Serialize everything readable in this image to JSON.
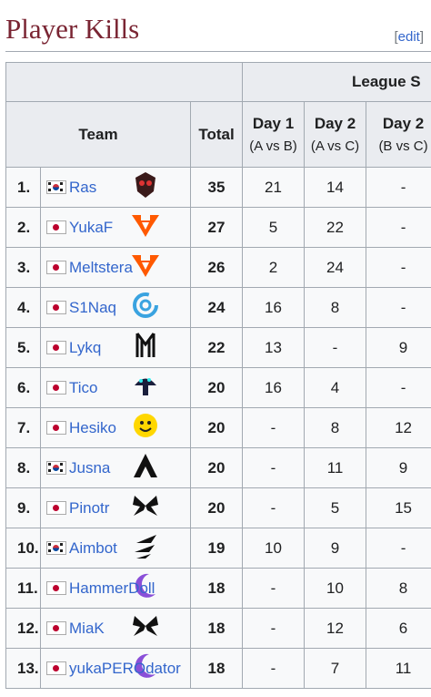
{
  "page": {
    "heading": "Player Kills",
    "edit_bracket_open": "[",
    "edit_label": "edit",
    "edit_bracket_close": "]"
  },
  "table": {
    "group_header": "League S",
    "columns": {
      "team": "Team",
      "total": "Total",
      "day1_a": {
        "day": "Day 1",
        "match": "(A vs B)"
      },
      "day2_a": {
        "day": "Day 2",
        "match": "(A vs C)"
      },
      "day2_b": {
        "day": "Day 2",
        "match": "(B vs C)"
      }
    },
    "rows": [
      {
        "rank": "1.",
        "flag": "kr",
        "player": "Ras",
        "logo": "ras-logo-icon",
        "total": "35",
        "d1": "21",
        "d2a": "14",
        "d2b": "-"
      },
      {
        "rank": "2.",
        "flag": "jp",
        "player": "YukaF",
        "logo": "fnatic-logo-icon",
        "total": "27",
        "d1": "5",
        "d2a": "22",
        "d2b": "-"
      },
      {
        "rank": "3.",
        "flag": "jp",
        "player": "Meltstera",
        "logo": "fnatic-logo-icon",
        "total": "26",
        "d1": "2",
        "d2a": "24",
        "d2b": "-"
      },
      {
        "rank": "4.",
        "flag": "jp",
        "player": "S1Naq",
        "logo": "swirl-logo-icon",
        "total": "24",
        "d1": "16",
        "d2a": "8",
        "d2b": "-"
      },
      {
        "rank": "5.",
        "flag": "jp",
        "player": "Lykq",
        "logo": "m-logo-icon",
        "total": "22",
        "d1": "13",
        "d2a": "-",
        "d2b": "9"
      },
      {
        "rank": "6.",
        "flag": "jp",
        "player": "Tico",
        "logo": "mushroom-logo-icon",
        "total": "20",
        "d1": "16",
        "d2a": "4",
        "d2b": "-"
      },
      {
        "rank": "7.",
        "flag": "jp",
        "player": "Hesiko",
        "logo": "smiley-logo-icon",
        "total": "20",
        "d1": "-",
        "d2a": "8",
        "d2b": "12"
      },
      {
        "rank": "8.",
        "flag": "kr",
        "player": "Jusna",
        "logo": "apex-logo-icon",
        "total": "20",
        "d1": "-",
        "d2a": "11",
        "d2b": "9"
      },
      {
        "rank": "9.",
        "flag": "jp",
        "player": "Pinotr",
        "logo": "butterfly-logo-icon",
        "total": "20",
        "d1": "-",
        "d2a": "5",
        "d2b": "15"
      },
      {
        "rank": "10.",
        "flag": "kr",
        "player": "Aimbot",
        "logo": "wing-logo-icon",
        "total": "19",
        "d1": "10",
        "d2a": "9",
        "d2b": "-"
      },
      {
        "rank": "11.",
        "flag": "jp",
        "player": "HammerDoll",
        "logo": "crescent-logo-icon",
        "total": "18",
        "d1": "-",
        "d2a": "10",
        "d2b": "8"
      },
      {
        "rank": "12.",
        "flag": "jp",
        "player": "MiaK",
        "logo": "butterfly-logo-icon",
        "total": "18",
        "d1": "-",
        "d2a": "12",
        "d2b": "6"
      },
      {
        "rank": "13.",
        "flag": "jp",
        "player": "yukaPEROdator",
        "logo": "crescent-logo-icon",
        "total": "18",
        "d1": "-",
        "d2a": "7",
        "d2b": "11"
      }
    ]
  }
}
